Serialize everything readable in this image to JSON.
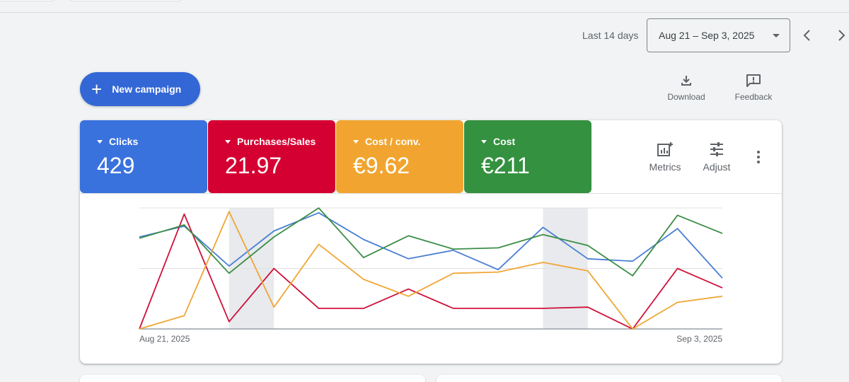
{
  "header": {
    "date_range_label": "Last 14 days",
    "date_range_value": "Aug 21 – Sep 3, 2025"
  },
  "toolbar": {
    "new_campaign_label": "New campaign",
    "download_label": "Download",
    "feedback_label": "Feedback"
  },
  "metrics": [
    {
      "label": "Clicks",
      "value": "429",
      "color": "#3a72dd"
    },
    {
      "label": "Purchases/Sales",
      "value": "21.97",
      "color": "#d50032"
    },
    {
      "label": "Cost / conv.",
      "value": "€9.62",
      "color": "#f1a530"
    },
    {
      "label": "Cost",
      "value": "€211",
      "color": "#34913f"
    }
  ],
  "card_actions": {
    "metrics_label": "Metrics",
    "adjust_label": "Adjust"
  },
  "chart_data": {
    "type": "line",
    "x": [
      "Aug 21, 2025",
      "Aug 22, 2025",
      "Aug 23, 2025",
      "Aug 24, 2025",
      "Aug 25, 2025",
      "Aug 26, 2025",
      "Aug 27, 2025",
      "Aug 28, 2025",
      "Aug 29, 2025",
      "Aug 30, 2025",
      "Aug 31, 2025",
      "Sep 1, 2025",
      "Sep 2, 2025",
      "Sep 3, 2025"
    ],
    "xtick_labels": [
      "Aug 21, 2025",
      "Sep 3, 2025"
    ],
    "weekend_bands": [
      [
        2,
        3
      ],
      [
        9,
        10
      ]
    ],
    "grid": true,
    "legend": "none",
    "series": [
      {
        "name": "Clicks",
        "color": "#4a7fd4",
        "values": [
          0.76,
          0.85,
          0.52,
          0.81,
          0.96,
          0.74,
          0.58,
          0.65,
          0.49,
          0.84,
          0.58,
          0.56,
          0.83,
          0.42
        ]
      },
      {
        "name": "Purchases/Sales",
        "color": "#d0103a",
        "values": [
          0.0,
          0.95,
          0.06,
          0.5,
          0.17,
          0.17,
          0.33,
          0.17,
          0.17,
          0.17,
          0.18,
          0.0,
          0.5,
          0.34
        ]
      },
      {
        "name": "Cost / conv.",
        "color": "#f0a634",
        "values": [
          0.0,
          0.11,
          0.97,
          0.18,
          0.7,
          0.41,
          0.27,
          0.46,
          0.47,
          0.55,
          0.48,
          0.0,
          0.22,
          0.27
        ]
      },
      {
        "name": "Cost",
        "color": "#3b8d45",
        "values": [
          0.75,
          0.86,
          0.46,
          0.76,
          1.0,
          0.59,
          0.77,
          0.66,
          0.67,
          0.78,
          0.69,
          0.44,
          0.94,
          0.79
        ]
      }
    ],
    "ylim": [
      0,
      1
    ]
  }
}
